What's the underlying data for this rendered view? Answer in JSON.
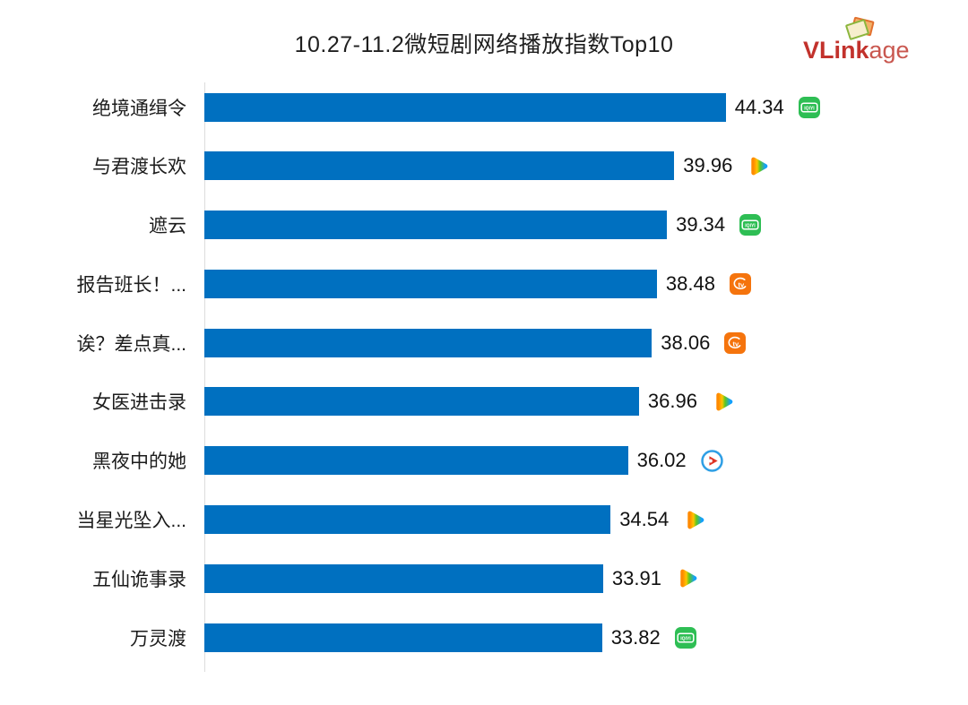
{
  "chart_data": {
    "type": "bar",
    "orientation": "horizontal",
    "title": "10.27-11.2微短剧网络播放指数Top10",
    "categories": [
      "绝境通缉令",
      "与君渡长欢",
      "遮云",
      "报告班长！...",
      "诶？差点真...",
      "女医进击录",
      "黑夜中的她",
      "当星光坠入...",
      "五仙诡事录",
      "万灵渡"
    ],
    "values": [
      44.34,
      39.96,
      39.34,
      38.48,
      38.06,
      36.96,
      36.02,
      34.54,
      33.91,
      33.82
    ],
    "platforms": [
      "iqiyi",
      "tencent-video",
      "iqiyi",
      "mango-tv",
      "mango-tv",
      "tencent-video",
      "youku",
      "tencent-video",
      "tencent-video",
      "iqiyi"
    ],
    "xlim": [
      0,
      45
    ],
    "grid": false,
    "value_labels_shown": true,
    "legend": "none",
    "bar_color": "#0070C0"
  },
  "logo": {
    "brand_bold": "VLink",
    "brand_light": "age"
  },
  "colors": {
    "bar_blue": "#0070C0",
    "title_text": "#1F1F1F",
    "logo_red": "#C2322C",
    "iqiyi_green": "#2EBE54",
    "mango_orange": "#F5740D",
    "youku_blue": "#2F9FE5",
    "tencent_gradient": [
      "#FF8A00",
      "#FFC400",
      "#5FC71E",
      "#12A0FF"
    ],
    "axis_line": "#DCDCDC"
  }
}
